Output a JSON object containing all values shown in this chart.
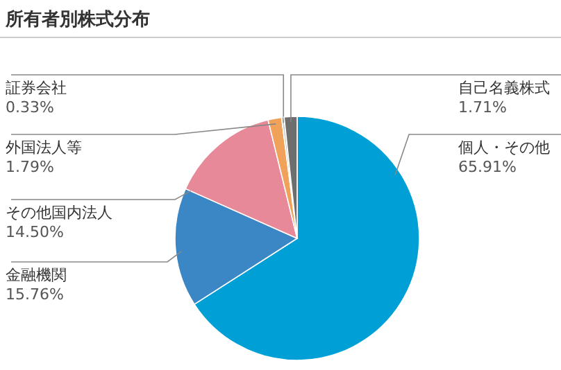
{
  "chart_data": {
    "type": "pie",
    "title": "所有者別株式分布",
    "categories": [
      "個人・その他",
      "金融機関",
      "その他国内法人",
      "外国法人等",
      "証券会社",
      "自己名義株式"
    ],
    "values": [
      65.91,
      15.76,
      14.5,
      1.79,
      0.33,
      1.71
    ],
    "value_labels": [
      "65.91%",
      "15.76%",
      "14.50%",
      "1.79%",
      "0.33%",
      "1.71%"
    ],
    "colors": [
      "#00a0d6",
      "#3b86c4",
      "#e8899a",
      "#f0a25a",
      "#c8c8c8",
      "#6e6e6e"
    ]
  }
}
